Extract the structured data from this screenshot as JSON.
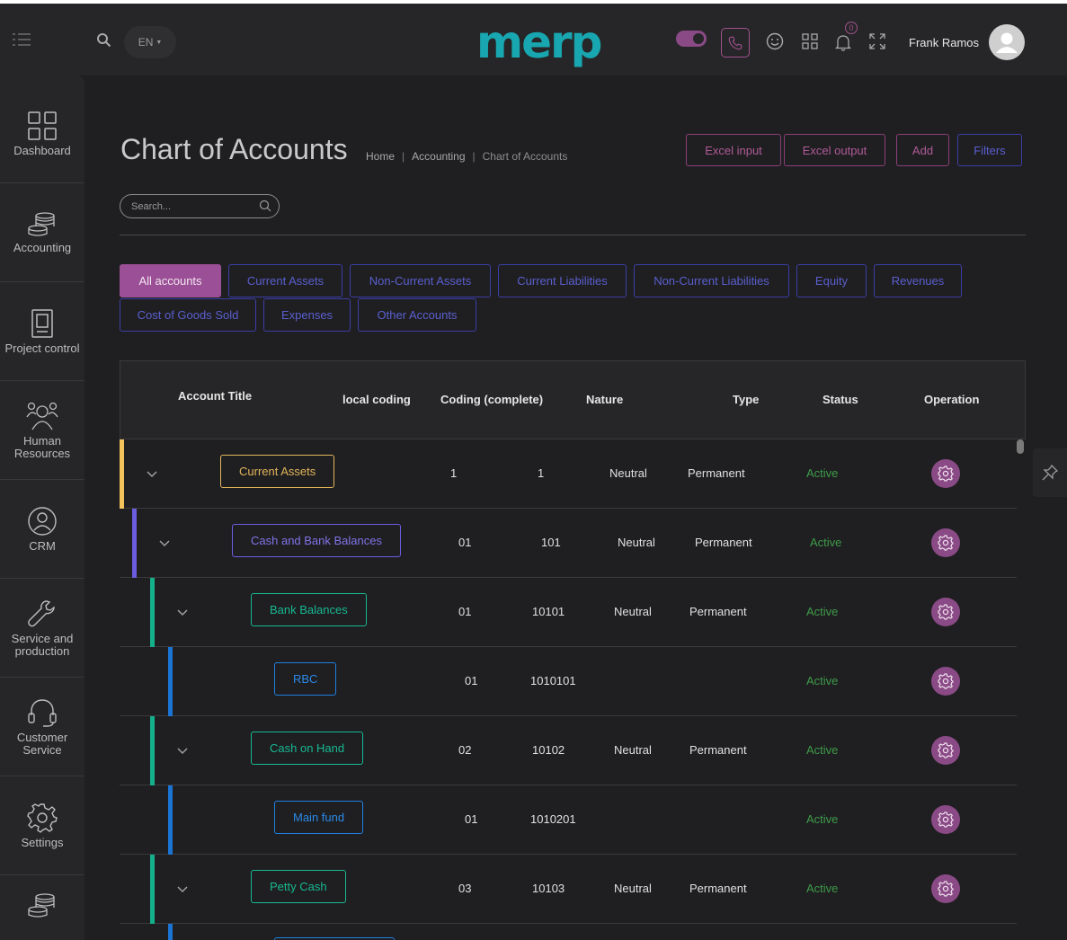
{
  "header": {
    "language": "EN",
    "logo_text": "merp",
    "user_name": "Frank Ramos",
    "notification_count": "0",
    "accent_color": "#9b4f96",
    "brand_color": "#18a7b0"
  },
  "sidebar": {
    "items": [
      {
        "label": "Dashboard",
        "icon": "dashboard-grid-icon"
      },
      {
        "label": "Accounting",
        "icon": "coins-stack-icon"
      },
      {
        "label": "Project control",
        "icon": "clipboard-icon"
      },
      {
        "label": "Human Resources",
        "icon": "people-icon"
      },
      {
        "label": "CRM",
        "icon": "crm-circle-icon"
      },
      {
        "label": "Service and production",
        "icon": "wrench-icon"
      },
      {
        "label": "Customer Service",
        "icon": "headset-icon"
      },
      {
        "label": "Settings",
        "icon": "gear-icon"
      }
    ]
  },
  "page": {
    "title": "Chart of Accounts",
    "breadcrumb": [
      "Home",
      "Accounting",
      "Chart of Accounts"
    ],
    "buttons": {
      "excel_input": "Excel input",
      "excel_output": "Excel output",
      "add": "Add",
      "filters": "Filters"
    },
    "search_placeholder": "Search..."
  },
  "filters": [
    "All accounts",
    "Current Assets",
    "Non-Current Assets",
    "Current Liabilities",
    "Non-Current Liabilities",
    "Equity",
    "Revenues",
    "Cost of Goods Sold",
    "Expenses",
    "Other Accounts"
  ],
  "table": {
    "columns": {
      "title": "Account Title",
      "local": "local coding",
      "complete": "Coding (complete)",
      "nature": "Nature",
      "type": "Type",
      "status": "Status",
      "operation": "Operation"
    },
    "rows": [
      {
        "title": "Current Assets",
        "local": "1",
        "complete": "1",
        "nature": "Neutral",
        "type": "Permanent",
        "status": "Active"
      },
      {
        "title": "Cash and Bank Balances",
        "local": "01",
        "complete": "101",
        "nature": "Neutral",
        "type": "Permanent",
        "status": "Active"
      },
      {
        "title": "Bank Balances",
        "local": "01",
        "complete": "10101",
        "nature": "Neutral",
        "type": "Permanent",
        "status": "Active"
      },
      {
        "title": "RBC",
        "local": "01",
        "complete": "1010101",
        "nature": "",
        "type": "",
        "status": "Active"
      },
      {
        "title": "Cash on Hand",
        "local": "02",
        "complete": "10102",
        "nature": "Neutral",
        "type": "Permanent",
        "status": "Active"
      },
      {
        "title": "Main fund",
        "local": "01",
        "complete": "1010201",
        "nature": "",
        "type": "",
        "status": "Active"
      },
      {
        "title": "Petty Cash",
        "local": "03",
        "complete": "10103",
        "nature": "Neutral",
        "type": "Permanent",
        "status": "Active"
      }
    ]
  }
}
